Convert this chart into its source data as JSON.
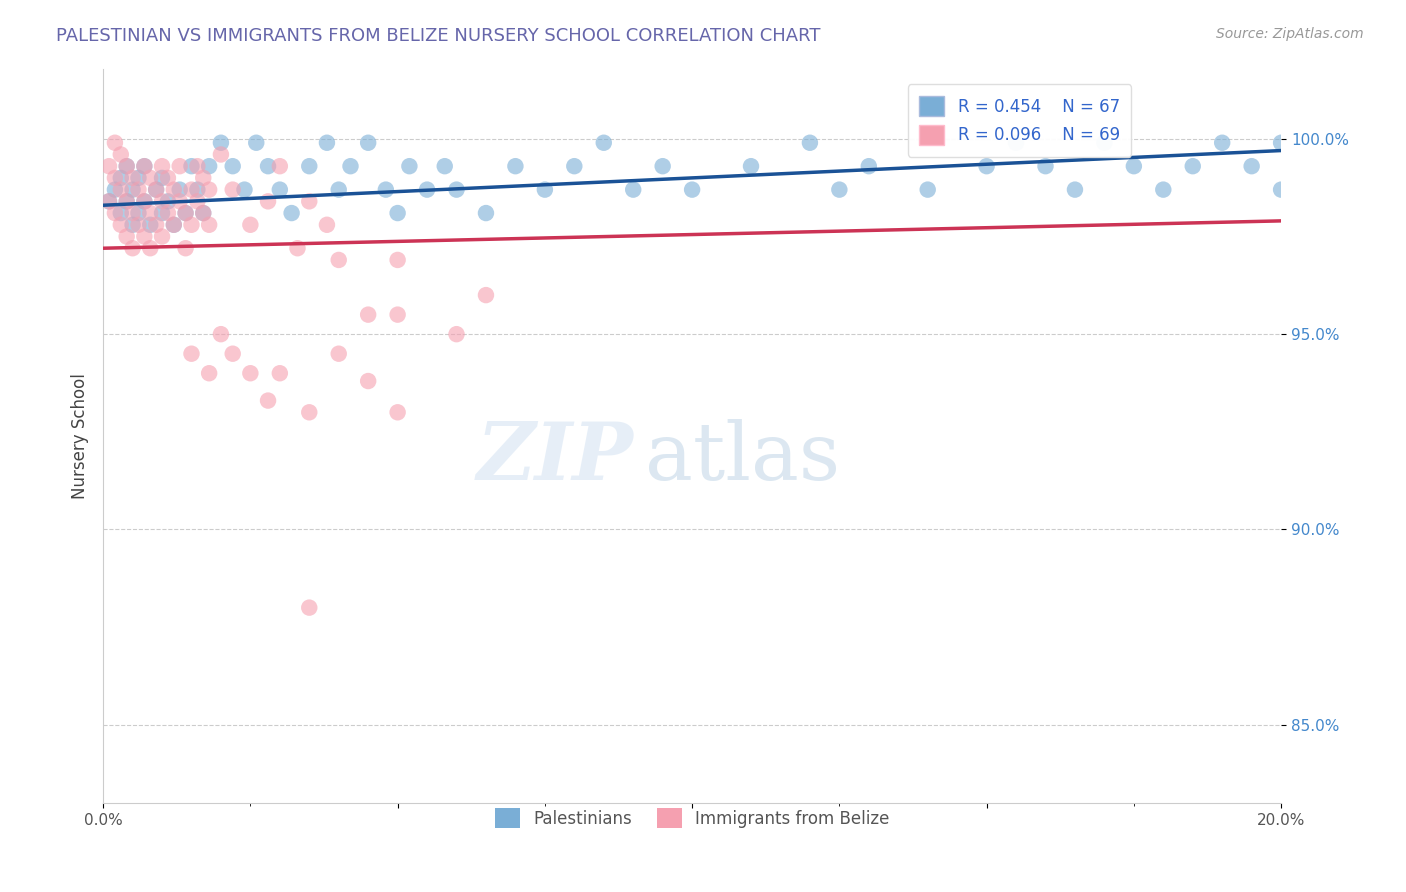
{
  "title": "PALESTINIAN VS IMMIGRANTS FROM BELIZE NURSERY SCHOOL CORRELATION CHART",
  "source": "Source: ZipAtlas.com",
  "ylabel": "Nursery School",
  "ytick_labels": [
    "85.0%",
    "90.0%",
    "95.0%",
    "100.0%"
  ],
  "ytick_values": [
    0.85,
    0.9,
    0.95,
    1.0
  ],
  "xlim": [
    0.0,
    0.2
  ],
  "ylim": [
    0.83,
    1.018
  ],
  "legend_blue_label": "R = 0.454    N = 67",
  "legend_pink_label": "R = 0.096    N = 69",
  "blue_color": "#7aaed6",
  "pink_color": "#f5a0b0",
  "blue_line_color": "#1a5296",
  "pink_line_color": "#cc3355",
  "blue_scatter": [
    [
      0.001,
      0.984
    ],
    [
      0.002,
      0.987
    ],
    [
      0.003,
      0.981
    ],
    [
      0.003,
      0.99
    ],
    [
      0.004,
      0.984
    ],
    [
      0.004,
      0.993
    ],
    [
      0.005,
      0.978
    ],
    [
      0.005,
      0.987
    ],
    [
      0.006,
      0.981
    ],
    [
      0.006,
      0.99
    ],
    [
      0.007,
      0.984
    ],
    [
      0.007,
      0.993
    ],
    [
      0.008,
      0.978
    ],
    [
      0.009,
      0.987
    ],
    [
      0.01,
      0.981
    ],
    [
      0.01,
      0.99
    ],
    [
      0.011,
      0.984
    ],
    [
      0.012,
      0.978
    ],
    [
      0.013,
      0.987
    ],
    [
      0.014,
      0.981
    ],
    [
      0.015,
      0.993
    ],
    [
      0.016,
      0.987
    ],
    [
      0.017,
      0.981
    ],
    [
      0.018,
      0.993
    ],
    [
      0.02,
      0.999
    ],
    [
      0.022,
      0.993
    ],
    [
      0.024,
      0.987
    ],
    [
      0.026,
      0.999
    ],
    [
      0.028,
      0.993
    ],
    [
      0.03,
      0.987
    ],
    [
      0.032,
      0.981
    ],
    [
      0.035,
      0.993
    ],
    [
      0.038,
      0.999
    ],
    [
      0.04,
      0.987
    ],
    [
      0.042,
      0.993
    ],
    [
      0.045,
      0.999
    ],
    [
      0.048,
      0.987
    ],
    [
      0.05,
      0.981
    ],
    [
      0.052,
      0.993
    ],
    [
      0.055,
      0.987
    ],
    [
      0.058,
      0.993
    ],
    [
      0.06,
      0.987
    ],
    [
      0.065,
      0.981
    ],
    [
      0.07,
      0.993
    ],
    [
      0.075,
      0.987
    ],
    [
      0.08,
      0.993
    ],
    [
      0.085,
      0.999
    ],
    [
      0.09,
      0.987
    ],
    [
      0.095,
      0.993
    ],
    [
      0.1,
      0.987
    ],
    [
      0.11,
      0.993
    ],
    [
      0.12,
      0.999
    ],
    [
      0.125,
      0.987
    ],
    [
      0.13,
      0.993
    ],
    [
      0.14,
      0.987
    ],
    [
      0.15,
      0.993
    ],
    [
      0.155,
      0.999
    ],
    [
      0.16,
      0.993
    ],
    [
      0.165,
      0.987
    ],
    [
      0.17,
      0.999
    ],
    [
      0.175,
      0.993
    ],
    [
      0.18,
      0.987
    ],
    [
      0.185,
      0.993
    ],
    [
      0.19,
      0.999
    ],
    [
      0.195,
      0.993
    ],
    [
      0.2,
      0.999
    ],
    [
      0.2,
      0.987
    ]
  ],
  "pink_scatter": [
    [
      0.001,
      0.993
    ],
    [
      0.001,
      0.984
    ],
    [
      0.002,
      0.999
    ],
    [
      0.002,
      0.99
    ],
    [
      0.002,
      0.981
    ],
    [
      0.003,
      0.996
    ],
    [
      0.003,
      0.987
    ],
    [
      0.003,
      0.978
    ],
    [
      0.004,
      0.993
    ],
    [
      0.004,
      0.984
    ],
    [
      0.004,
      0.975
    ],
    [
      0.005,
      0.99
    ],
    [
      0.005,
      0.981
    ],
    [
      0.005,
      0.972
    ],
    [
      0.006,
      0.987
    ],
    [
      0.006,
      0.978
    ],
    [
      0.007,
      0.993
    ],
    [
      0.007,
      0.984
    ],
    [
      0.007,
      0.975
    ],
    [
      0.008,
      0.99
    ],
    [
      0.008,
      0.981
    ],
    [
      0.008,
      0.972
    ],
    [
      0.009,
      0.987
    ],
    [
      0.009,
      0.978
    ],
    [
      0.01,
      0.993
    ],
    [
      0.01,
      0.984
    ],
    [
      0.01,
      0.975
    ],
    [
      0.011,
      0.99
    ],
    [
      0.011,
      0.981
    ],
    [
      0.012,
      0.987
    ],
    [
      0.012,
      0.978
    ],
    [
      0.013,
      0.993
    ],
    [
      0.013,
      0.984
    ],
    [
      0.014,
      0.981
    ],
    [
      0.014,
      0.972
    ],
    [
      0.015,
      0.987
    ],
    [
      0.015,
      0.978
    ],
    [
      0.016,
      0.993
    ],
    [
      0.016,
      0.984
    ],
    [
      0.017,
      0.99
    ],
    [
      0.017,
      0.981
    ],
    [
      0.018,
      0.987
    ],
    [
      0.018,
      0.978
    ],
    [
      0.02,
      0.996
    ],
    [
      0.022,
      0.987
    ],
    [
      0.025,
      0.978
    ],
    [
      0.028,
      0.984
    ],
    [
      0.03,
      0.993
    ],
    [
      0.033,
      0.972
    ],
    [
      0.035,
      0.984
    ],
    [
      0.038,
      0.978
    ],
    [
      0.04,
      0.969
    ],
    [
      0.045,
      0.955
    ],
    [
      0.05,
      0.955
    ],
    [
      0.05,
      0.969
    ],
    [
      0.06,
      0.95
    ],
    [
      0.065,
      0.96
    ],
    [
      0.015,
      0.945
    ],
    [
      0.018,
      0.94
    ],
    [
      0.02,
      0.95
    ],
    [
      0.022,
      0.945
    ],
    [
      0.025,
      0.94
    ],
    [
      0.028,
      0.933
    ],
    [
      0.03,
      0.94
    ],
    [
      0.035,
      0.93
    ],
    [
      0.04,
      0.945
    ],
    [
      0.045,
      0.938
    ],
    [
      0.05,
      0.93
    ],
    [
      0.035,
      0.88
    ]
  ]
}
